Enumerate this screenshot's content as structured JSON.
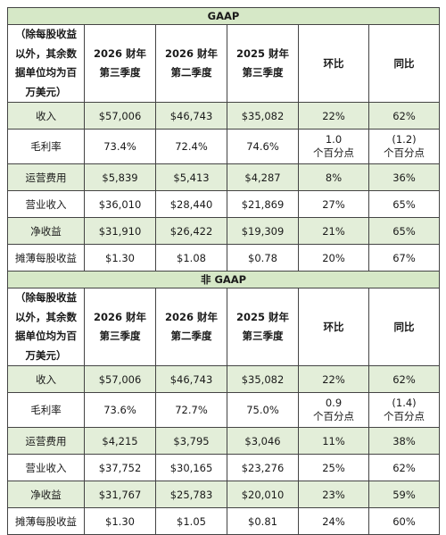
{
  "tables": [
    {
      "title": "GAAP",
      "corner": "（除每股收益\n以外，其余数\n据单位均为百\n万美元）",
      "columns": [
        "2026 财年\n第三季度",
        "2026 财年\n第二季度",
        "2025 财年\n第三季度",
        "环比",
        "同比"
      ],
      "rows": [
        {
          "label": "收入",
          "cells": [
            "$57,006",
            "$46,743",
            "$35,082",
            "22%",
            "62%"
          ]
        },
        {
          "label": "毛利率",
          "cells": [
            "73.4%",
            "72.4%",
            "74.6%",
            "1.0\n个百分点",
            "(1.2)\n个百分点"
          ]
        },
        {
          "label": "运营费用",
          "cells": [
            "$5,839",
            "$5,413",
            "$4,287",
            "8%",
            "36%"
          ]
        },
        {
          "label": "营业收入",
          "cells": [
            "$36,010",
            "$28,440",
            "$21,869",
            "27%",
            "65%"
          ]
        },
        {
          "label": "净收益",
          "cells": [
            "$31,910",
            "$26,422",
            "$19,309",
            "21%",
            "65%"
          ]
        },
        {
          "label": "摊薄每股收益",
          "cells": [
            "$1.30",
            "$1.08",
            "$0.78",
            "20%",
            "67%"
          ]
        }
      ]
    },
    {
      "title": "非 GAAP",
      "corner": "（除每股收益\n以外，其余数\n据单位均为百\n万美元）",
      "columns": [
        "2026 财年\n第三季度",
        "2026 财年\n第二季度",
        "2025 财年\n第三季度",
        "环比",
        "同比"
      ],
      "rows": [
        {
          "label": "收入",
          "cells": [
            "$57,006",
            "$46,743",
            "$35,082",
            "22%",
            "62%"
          ]
        },
        {
          "label": "毛利率",
          "cells": [
            "73.6%",
            "72.7%",
            "75.0%",
            "0.9\n个百分点",
            "(1.4)\n个百分点"
          ]
        },
        {
          "label": "运营费用",
          "cells": [
            "$4,215",
            "$3,795",
            "$3,046",
            "11%",
            "38%"
          ]
        },
        {
          "label": "营业收入",
          "cells": [
            "$37,752",
            "$30,165",
            "$23,276",
            "25%",
            "62%"
          ]
        },
        {
          "label": "净收益",
          "cells": [
            "$31,767",
            "$25,783",
            "$20,010",
            "23%",
            "59%"
          ]
        },
        {
          "label": "摊薄每股收益",
          "cells": [
            "$1.30",
            "$1.05",
            "$0.81",
            "24%",
            "60%"
          ]
        }
      ]
    }
  ],
  "colors": {
    "shade": "#e3eed9",
    "title_bg": "#d6e8c7",
    "border": "#444444"
  }
}
